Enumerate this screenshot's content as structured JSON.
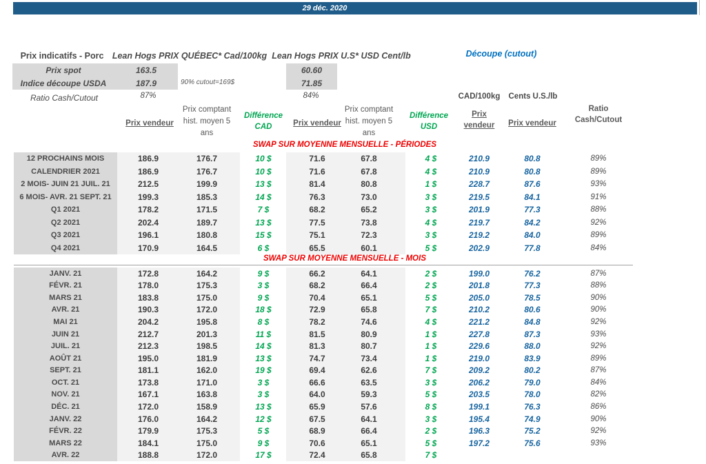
{
  "title_bar": {
    "date": "29 déc. 2020"
  },
  "summary": {
    "section_title": "Prix indicatifs - Porc",
    "quebec_title": "Lean Hogs PRIX QUÉBEC* Cad/100kg",
    "us_title": "Lean Hogs PRIX U.S* USD Cent/lb",
    "cutout_title": "Découpe (cutout)",
    "rows": [
      {
        "label": "Prix spot",
        "cad": "163.5",
        "usd": "60.60"
      },
      {
        "label": "Indice découpe USDA",
        "cad": "187.9",
        "usd": "71.85"
      }
    ],
    "cutout_note": "90% cutout=169$",
    "ratio_label": "Ratio Cash/Cutout",
    "ratio_cad": "87%",
    "ratio_usd": "84%"
  },
  "col_headers": {
    "unit_cad": "CAD/100kg",
    "unit_usd": "Cents U.S./lb",
    "prix_vendeur": "Prix vendeur",
    "prix_comptant": [
      "Prix comptant",
      "hist. moyen 5",
      "ans"
    ],
    "difference_cad": [
      "Différence",
      "CAD"
    ],
    "difference_usd": [
      "Différence",
      "USD"
    ],
    "cutout_prix_vendeur": [
      "Prix",
      "vendeur"
    ],
    "ratio": [
      "Ratio",
      "Cash/Cutout"
    ]
  },
  "sections": {
    "periodes_title": "SWAP SUR MOYENNE MENSUELLE - PÉRIODES",
    "mois_title": "SWAP SUR MOYENNE MENSUELLE - MOIS"
  },
  "table": {
    "periodes": [
      {
        "label": "12 PROCHAINS MOIS",
        "pv_cad": "186.9",
        "pc_cad": "176.7",
        "diff_cad": "10 $",
        "pv_usd": "71.6",
        "pc_usd": "67.8",
        "diff_usd": "4 $",
        "cut_cad": "210.9",
        "cut_usd": "80.8",
        "ratio": "89%"
      },
      {
        "label": "CALENDRIER 2021",
        "pv_cad": "186.9",
        "pc_cad": "176.7",
        "diff_cad": "10 $",
        "pv_usd": "71.6",
        "pc_usd": "67.8",
        "diff_usd": "4 $",
        "cut_cad": "210.9",
        "cut_usd": "80.8",
        "ratio": "89%"
      },
      {
        "label": "2 MOIS- JUIN 21 JUIL. 21",
        "pv_cad": "212.5",
        "pc_cad": "199.9",
        "diff_cad": "13 $",
        "pv_usd": "81.4",
        "pc_usd": "80.8",
        "diff_usd": "1 $",
        "cut_cad": "228.7",
        "cut_usd": "87.6",
        "ratio": "93%"
      },
      {
        "label": "6 MOIS- AVR. 21 SEPT. 21",
        "pv_cad": "199.3",
        "pc_cad": "185.3",
        "diff_cad": "14 $",
        "pv_usd": "76.3",
        "pc_usd": "73.0",
        "diff_usd": "3 $",
        "cut_cad": "219.5",
        "cut_usd": "84.1",
        "ratio": "91%"
      },
      {
        "label": "Q1 2021",
        "pv_cad": "178.2",
        "pc_cad": "171.5",
        "diff_cad": "7 $",
        "pv_usd": "68.2",
        "pc_usd": "65.2",
        "diff_usd": "3 $",
        "cut_cad": "201.9",
        "cut_usd": "77.3",
        "ratio": "88%"
      },
      {
        "label": "Q2 2021",
        "pv_cad": "202.4",
        "pc_cad": "189.7",
        "diff_cad": "13 $",
        "pv_usd": "77.5",
        "pc_usd": "73.8",
        "diff_usd": "4 $",
        "cut_cad": "219.7",
        "cut_usd": "84.2",
        "ratio": "92%"
      },
      {
        "label": "Q3 2021",
        "pv_cad": "196.1",
        "pc_cad": "180.8",
        "diff_cad": "15 $",
        "pv_usd": "75.1",
        "pc_usd": "72.3",
        "diff_usd": "3 $",
        "cut_cad": "219.2",
        "cut_usd": "84.0",
        "ratio": "89%"
      },
      {
        "label": "Q4 2021",
        "pv_cad": "170.9",
        "pc_cad": "164.5",
        "diff_cad": "6 $",
        "pv_usd": "65.5",
        "pc_usd": "60.1",
        "diff_usd": "5 $",
        "cut_cad": "202.9",
        "cut_usd": "77.8",
        "ratio": "84%"
      }
    ],
    "mois": [
      {
        "label": "JANV. 21",
        "pv_cad": "172.8",
        "pc_cad": "164.2",
        "diff_cad": "9 $",
        "pv_usd": "66.2",
        "pc_usd": "64.1",
        "diff_usd": "2 $",
        "cut_cad": "199.0",
        "cut_usd": "76.2",
        "ratio": "87%"
      },
      {
        "label": "FÉVR. 21",
        "pv_cad": "178.0",
        "pc_cad": "175.3",
        "diff_cad": "3 $",
        "pv_usd": "68.2",
        "pc_usd": "66.4",
        "diff_usd": "2 $",
        "cut_cad": "201.8",
        "cut_usd": "77.3",
        "ratio": "88%"
      },
      {
        "label": "MARS 21",
        "pv_cad": "183.8",
        "pc_cad": "175.0",
        "diff_cad": "9 $",
        "pv_usd": "70.4",
        "pc_usd": "65.1",
        "diff_usd": "5 $",
        "cut_cad": "205.0",
        "cut_usd": "78.5",
        "ratio": "90%"
      },
      {
        "label": "AVR. 21",
        "pv_cad": "190.3",
        "pc_cad": "172.0",
        "diff_cad": "18 $",
        "pv_usd": "72.9",
        "pc_usd": "65.8",
        "diff_usd": "7 $",
        "cut_cad": "210.2",
        "cut_usd": "80.6",
        "ratio": "90%"
      },
      {
        "label": "MAI 21",
        "pv_cad": "204.2",
        "pc_cad": "195.8",
        "diff_cad": "8 $",
        "pv_usd": "78.2",
        "pc_usd": "74.6",
        "diff_usd": "4 $",
        "cut_cad": "221.2",
        "cut_usd": "84.8",
        "ratio": "92%"
      },
      {
        "label": "JUIN 21",
        "pv_cad": "212.7",
        "pc_cad": "201.3",
        "diff_cad": "11 $",
        "pv_usd": "81.5",
        "pc_usd": "80.9",
        "diff_usd": "1 $",
        "cut_cad": "227.8",
        "cut_usd": "87.3",
        "ratio": "93%"
      },
      {
        "label": "JUIL. 21",
        "pv_cad": "212.3",
        "pc_cad": "198.5",
        "diff_cad": "14 $",
        "pv_usd": "81.3",
        "pc_usd": "80.7",
        "diff_usd": "1 $",
        "cut_cad": "229.6",
        "cut_usd": "88.0",
        "ratio": "92%"
      },
      {
        "label": "AOÛT 21",
        "pv_cad": "195.0",
        "pc_cad": "181.9",
        "diff_cad": "13 $",
        "pv_usd": "74.7",
        "pc_usd": "73.4",
        "diff_usd": "1 $",
        "cut_cad": "219.0",
        "cut_usd": "83.9",
        "ratio": "89%"
      },
      {
        "label": "SEPT. 21",
        "pv_cad": "181.1",
        "pc_cad": "162.0",
        "diff_cad": "19 $",
        "pv_usd": "69.4",
        "pc_usd": "62.6",
        "diff_usd": "7 $",
        "cut_cad": "209.2",
        "cut_usd": "80.2",
        "ratio": "87%"
      },
      {
        "label": "OCT. 21",
        "pv_cad": "173.8",
        "pc_cad": "171.0",
        "diff_cad": "3 $",
        "pv_usd": "66.6",
        "pc_usd": "63.5",
        "diff_usd": "3 $",
        "cut_cad": "206.2",
        "cut_usd": "79.0",
        "ratio": "84%"
      },
      {
        "label": "NOV. 21",
        "pv_cad": "167.1",
        "pc_cad": "163.8",
        "diff_cad": "3 $",
        "pv_usd": "64.0",
        "pc_usd": "59.3",
        "diff_usd": "5 $",
        "cut_cad": "203.5",
        "cut_usd": "78.0",
        "ratio": "82%"
      },
      {
        "label": "DÉC. 21",
        "pv_cad": "172.0",
        "pc_cad": "158.9",
        "diff_cad": "13 $",
        "pv_usd": "65.9",
        "pc_usd": "57.6",
        "diff_usd": "8 $",
        "cut_cad": "199.1",
        "cut_usd": "76.3",
        "ratio": "86%"
      },
      {
        "label": "JANV. 22",
        "pv_cad": "176.0",
        "pc_cad": "164.2",
        "diff_cad": "12 $",
        "pv_usd": "67.5",
        "pc_usd": "64.1",
        "diff_usd": "3 $",
        "cut_cad": "195.4",
        "cut_usd": "74.9",
        "ratio": "90%"
      },
      {
        "label": "FÉVR. 22",
        "pv_cad": "179.9",
        "pc_cad": "175.3",
        "diff_cad": "5 $",
        "pv_usd": "68.9",
        "pc_usd": "66.4",
        "diff_usd": "2 $",
        "cut_cad": "196.3",
        "cut_usd": "75.2",
        "ratio": "92%"
      },
      {
        "label": "MARS 22",
        "pv_cad": "184.1",
        "pc_cad": "175.0",
        "diff_cad": "9 $",
        "pv_usd": "70.6",
        "pc_usd": "65.1",
        "diff_usd": "5 $",
        "cut_cad": "197.2",
        "cut_usd": "75.6",
        "ratio": "93%"
      },
      {
        "label": "AVR. 22",
        "pv_cad": "188.8",
        "pc_cad": "172.0",
        "diff_cad": "17 $",
        "pv_usd": "72.4",
        "pc_usd": "65.8",
        "diff_usd": "7 $",
        "cut_cad": "",
        "cut_usd": "",
        "ratio": ""
      }
    ]
  },
  "colors": {
    "banner_blue": "#1f5c8a",
    "accent_blue": "#0070c0",
    "value_blue": "#15639f",
    "positive_green": "#00a651",
    "section_red": "#ee0000",
    "label_column_gray": "#d9d9d9",
    "data_band_gray": "#f2f2f2"
  }
}
